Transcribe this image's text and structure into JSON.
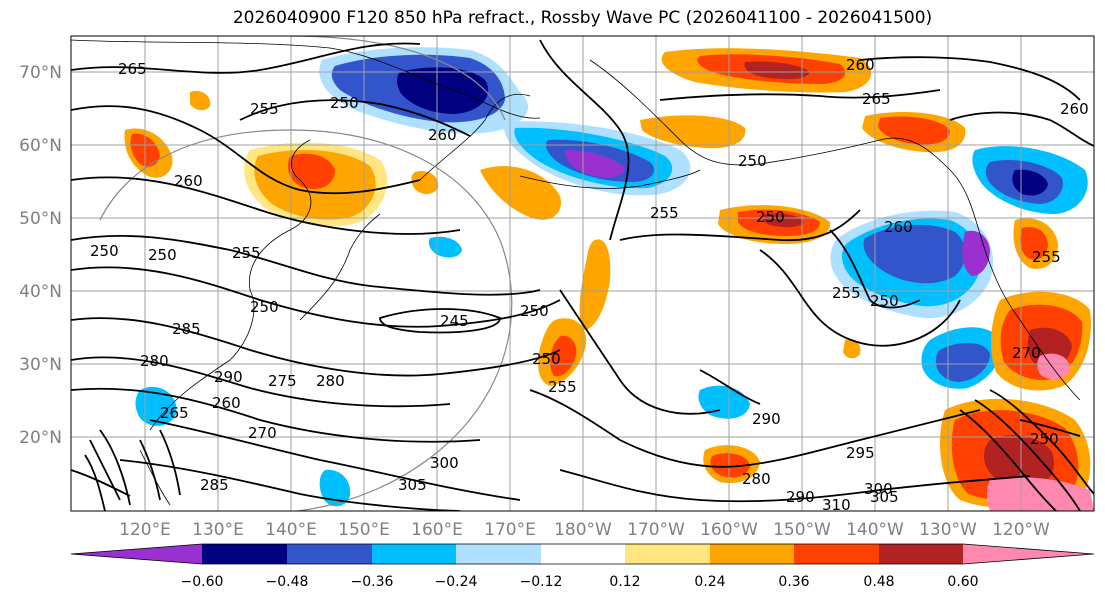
{
  "title": "2026040900 F120 850 hPa refract., Rossby Wave PC (2026041100 - 2026041500)",
  "lat_labels": [
    "70°N",
    "60°N",
    "50°N",
    "40°N",
    "30°N",
    "20°N"
  ],
  "lon_labels": [
    "120°E",
    "130°E",
    "140°E",
    "150°E",
    "160°E",
    "170°E",
    "180°W",
    "170°W",
    "160°W",
    "150°W",
    "140°W",
    "130°W",
    "120°W"
  ],
  "colorbar": {
    "ticks": [
      "−0.60",
      "−0.48",
      "−0.36",
      "−0.24",
      "−0.12",
      "0.12",
      "0.24",
      "0.36",
      "0.48",
      "0.60"
    ],
    "colors": [
      "#9b30d0",
      "#000080",
      "#3355cc",
      "#00bfff",
      "#b0e0ff",
      "#ffffff",
      "#ffe680",
      "#ffa500",
      "#ff4000",
      "#b22222",
      "#ff88b0"
    ]
  },
  "contour_labels": [
    "265",
    "255",
    "250",
    "260",
    "260",
    "250",
    "250",
    "255",
    "245",
    "250",
    "285",
    "280",
    "290",
    "275",
    "260",
    "265",
    "270",
    "280",
    "300",
    "305",
    "285",
    "255",
    "250",
    "250",
    "260",
    "265",
    "260",
    "250",
    "250",
    "255",
    "250",
    "255",
    "290",
    "295",
    "280",
    "290",
    "300",
    "305",
    "310",
    "250",
    "270",
    "255",
    "260"
  ]
}
